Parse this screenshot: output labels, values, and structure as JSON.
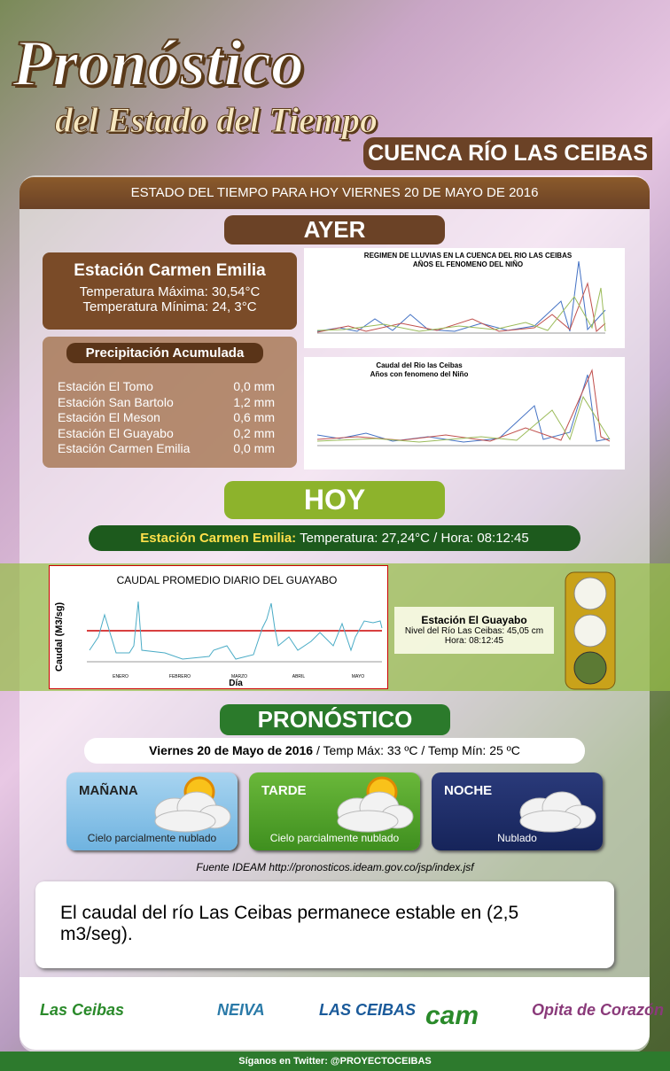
{
  "header": {
    "title": "Pronóstico",
    "subtitle": "del Estado del Tiempo",
    "region": "CUENCA RÍO LAS CEIBAS"
  },
  "date_banner": "ESTADO DEL TIEMPO PARA HOY VIERNES 20 DE MAYO DE 2016",
  "ayer": {
    "heading": "AYER",
    "station": {
      "name": "Estación Carmen Emilia",
      "max": "Temperatura Máxima: 30,54°C",
      "min": "Temperatura Mínima: 24, 3°C"
    },
    "precipitation": {
      "heading": "Precipitación Acumulada",
      "rows": [
        [
          "Estación El Tomo",
          "0,0 mm"
        ],
        [
          "Estación San Bartolo",
          "1,2 mm"
        ],
        [
          "Estación El Meson",
          "0,6 mm"
        ],
        [
          "Estación El Guayabo",
          "0,2 mm"
        ],
        [
          "Estación Carmen Emilia",
          "0,0 mm"
        ]
      ]
    },
    "charts": [
      {
        "title": "REGIMEN DE LLUVIAS EN LA CUENCA DEL RIO LAS CEIBAS",
        "subtitle": "AÑOS EL FENOMENO DEL NIÑO"
      },
      {
        "title": "Caudal del Rio las Ceibas",
        "subtitle": "Años con fenomeno del Niño"
      }
    ]
  },
  "hoy": {
    "heading": "HOY",
    "station_label": "Estación Carmen Emilia:",
    "reading": "Temperatura: 27,24°C / Hora: 08:12:45",
    "chart": {
      "title": "CAUDAL PROMEDIO DIARIO DEL GUAYABO",
      "y_label": "Caudal (M3/sg)",
      "x_label": "Día",
      "months": [
        "ENERO",
        "FEBRERO",
        "MARZO",
        "ABRIL",
        "MAYO"
      ]
    },
    "guayabo": {
      "name": "Estación El Guayabo",
      "level": "Nivel del Río Las Ceibas: 45,05 cm",
      "time": "Hora: 08:12:45"
    }
  },
  "pronostico": {
    "heading": "PRONÓSTICO",
    "date": "Viernes 20 de Mayo de 2016",
    "temps": "/ Temp Máx: 33 ºC / Temp Mín: 25 ºC",
    "periods": [
      {
        "name": "MAÑANA",
        "desc": "Cielo parcialmente nublado"
      },
      {
        "name": "TARDE",
        "desc": "Cielo parcialmente nublado"
      },
      {
        "name": "NOCHE",
        "desc": "Nublado"
      }
    ],
    "source": "Fuente IDEAM http://pronosticos.ideam.gov.co/jsp/index.jsf",
    "note": "El caudal del río Las Ceibas permanece estable en (2,5 m3/seg)."
  },
  "footer": {
    "logos": [
      "Las Ceibas",
      "NEIVA",
      "LAS CEIBAS",
      "cam",
      "Opita de Corazón"
    ],
    "twitter": "Síganos en Twitter: @PROYECTOCEIBAS"
  }
}
